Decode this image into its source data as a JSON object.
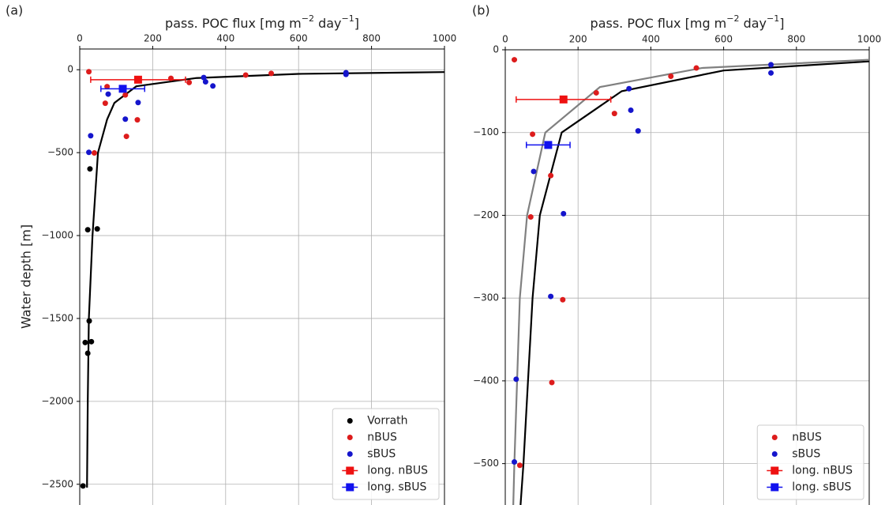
{
  "chart_data": [
    {
      "type": "scatter",
      "panel_label": "(a)",
      "xlabel": [
        "pass. POC flux  [mg m",
        "−2",
        " day",
        "−1",
        "]"
      ],
      "ylabel": "Water depth [m]",
      "xlim": [
        0,
        1000
      ],
      "xticks": [
        0,
        200,
        400,
        600,
        800,
        1000
      ],
      "ylim": [
        -2625,
        125
      ],
      "yticks": [
        {
          "value": -2500,
          "label": "−2500"
        },
        {
          "value": -2000,
          "label": "−2000"
        },
        {
          "value": -1500,
          "label": "−1500"
        },
        {
          "value": -1000,
          "label": "−1000"
        },
        {
          "value": -500,
          "label": "−500"
        },
        0
      ],
      "grid": true,
      "legend": "lower right",
      "lines": [
        {
          "color": "#000000",
          "x": [
            1000,
            600,
            320,
            155,
            95,
            75,
            50,
            35,
            25,
            22,
            20,
            20
          ],
          "values": [
            -14,
            -25,
            -50,
            -100,
            -200,
            -300,
            -500,
            -1000,
            -1500,
            -2000,
            -2500,
            -2520
          ]
        }
      ],
      "series": [
        {
          "name": "Vorrath",
          "color": "#000000",
          "x": [
            28,
            22,
            48,
            26,
            15,
            32,
            22,
            9
          ],
          "values": [
            -598,
            -965,
            -960,
            -1515,
            -1645,
            -1640,
            -1710,
            -2510
          ]
        },
        {
          "name": "nBUS",
          "color": "#dd1c1c",
          "x": [
            25,
            250,
            300,
            455,
            525,
            75,
            125,
            70,
            158,
            128,
            40
          ],
          "values": [
            -12,
            -52,
            -77,
            -32,
            -22,
            -102,
            -152,
            -202,
            -302,
            -402,
            -502
          ]
        },
        {
          "name": "sBUS",
          "color": "#1515cc",
          "x": [
            730,
            730,
            340,
            345,
            365,
            78,
            160,
            125,
            30,
            25
          ],
          "values": [
            -18,
            -28,
            -47,
            -73,
            -98,
            -147,
            -198,
            -298,
            -398,
            -498
          ]
        },
        {
          "name": "long. nBUS",
          "color": "#ee1111",
          "x": [
            160
          ],
          "values": [
            -60
          ],
          "xerr": [
            130
          ]
        },
        {
          "name": "long. sBUS",
          "color": "#1111ee",
          "x": [
            118
          ],
          "values": [
            -115
          ],
          "xerr": [
            60
          ]
        }
      ]
    },
    {
      "type": "scatter",
      "panel_label": "(b)",
      "xlabel": [
        "pass. POC flux  [mg m",
        "−2",
        " day",
        "−1",
        "]"
      ],
      "xlim": [
        0,
        1000
      ],
      "xticks": [
        0,
        200,
        400,
        600,
        800,
        1000
      ],
      "ylim": [
        -550,
        0
      ],
      "yticks": [
        {
          "value": -500,
          "label": "−500"
        },
        {
          "value": -400,
          "label": "−400"
        },
        {
          "value": -300,
          "label": "−300"
        },
        {
          "value": -200,
          "label": "−200"
        },
        {
          "value": -100,
          "label": "−100"
        },
        0
      ],
      "grid": true,
      "legend": "lower right",
      "lines": [
        {
          "color": "#000000",
          "x": [
            1000,
            600,
            320,
            155,
            95,
            75,
            50,
            42
          ],
          "values": [
            -14,
            -25,
            -50,
            -100,
            -200,
            -300,
            -500,
            -550
          ]
        },
        {
          "color": "#808080",
          "x": [
            1000,
            540,
            260,
            110,
            60,
            40,
            25,
            22
          ],
          "values": [
            -12,
            -22,
            -45,
            -100,
            -200,
            -300,
            -500,
            -550
          ]
        }
      ],
      "series": [
        {
          "name": "nBUS",
          "color": "#dd1c1c",
          "x": [
            25,
            250,
            300,
            455,
            525,
            75,
            125,
            70,
            158,
            128,
            40
          ],
          "values": [
            -12,
            -52,
            -77,
            -32,
            -22,
            -102,
            -152,
            -202,
            -302,
            -402,
            -502
          ]
        },
        {
          "name": "sBUS",
          "color": "#1515cc",
          "x": [
            730,
            730,
            340,
            345,
            365,
            78,
            160,
            125,
            30,
            25
          ],
          "values": [
            -18,
            -28,
            -47,
            -73,
            -98,
            -147,
            -198,
            -298,
            -398,
            -498
          ]
        },
        {
          "name": "long. nBUS",
          "color": "#ee1111",
          "x": [
            160
          ],
          "values": [
            -60
          ],
          "xerr": [
            130
          ]
        },
        {
          "name": "long. sBUS",
          "color": "#1111ee",
          "x": [
            118
          ],
          "values": [
            -115
          ],
          "xerr": [
            60
          ]
        }
      ]
    }
  ]
}
